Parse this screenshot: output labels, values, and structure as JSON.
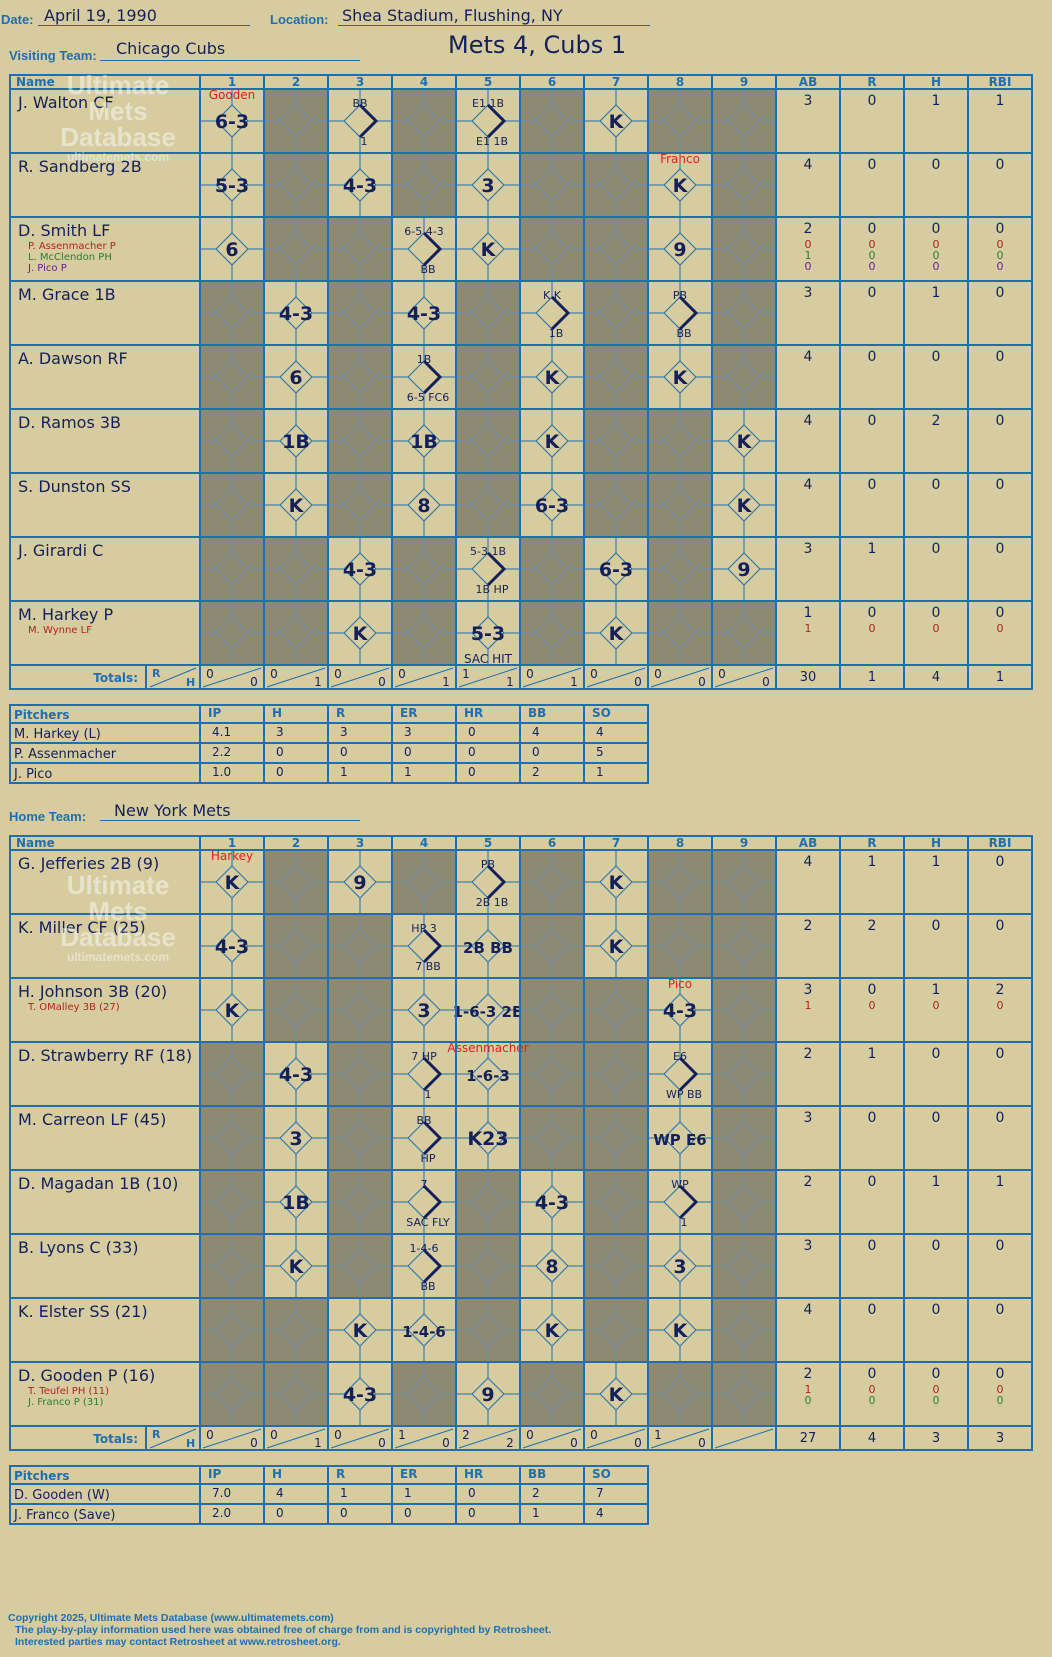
{
  "header": {
    "date_label": "Date:",
    "date": "April 19, 1990",
    "location_label": "Location:",
    "location": "Shea Stadium, Flushing, NY",
    "visiting_label": "Visiting Team:",
    "visiting_team": "Chicago Cubs",
    "home_label": "Home Team:",
    "home_team": "New York Mets",
    "result": "Mets 4, Cubs 1"
  },
  "watermark": {
    "line1": "Ultimate",
    "line2": "Mets",
    "line3": "Database",
    "url": "ultimatemets.com"
  },
  "grid_headers": {
    "name": "Name",
    "innings": [
      "1",
      "2",
      "3",
      "4",
      "5",
      "6",
      "7",
      "8",
      "9"
    ],
    "stats": [
      "AB",
      "R",
      "H",
      "RBI"
    ],
    "totals": "Totals:",
    "r": "R",
    "h": "H"
  },
  "pitching_headers": {
    "name": "Pitchers",
    "cols": [
      "IP",
      "H",
      "R",
      "ER",
      "HR",
      "BB",
      "SO"
    ]
  },
  "visitors": {
    "batters": [
      {
        "name": "J. Walton CF",
        "subs": [],
        "stats": [
          [
            "3",
            "0",
            "1",
            "1"
          ]
        ]
      },
      {
        "name": "R. Sandberg 2B",
        "subs": [],
        "stats": [
          [
            "4",
            "0",
            "0",
            "0"
          ]
        ]
      },
      {
        "name": "D. Smith LF",
        "subs": [
          {
            "name": "P. Assenmacher P",
            "color": "#b22222"
          },
          {
            "name": "L. McClendon PH",
            "color": "#2e7d32"
          },
          {
            "name": "J. Pico P",
            "color": "#6a1b9a"
          }
        ],
        "stats": [
          [
            "2",
            "0",
            "0",
            "0"
          ],
          [
            "0",
            "0",
            "0",
            "0"
          ],
          [
            "1",
            "0",
            "0",
            "0"
          ],
          [
            "0",
            "0",
            "0",
            "0"
          ]
        ]
      },
      {
        "name": "M. Grace 1B",
        "subs": [],
        "stats": [
          [
            "3",
            "0",
            "1",
            "0"
          ]
        ]
      },
      {
        "name": "A. Dawson RF",
        "subs": [],
        "stats": [
          [
            "4",
            "0",
            "0",
            "0"
          ]
        ]
      },
      {
        "name": "D. Ramos 3B",
        "subs": [],
        "stats": [
          [
            "4",
            "0",
            "2",
            "0"
          ]
        ]
      },
      {
        "name": "S. Dunston SS",
        "subs": [],
        "stats": [
          [
            "4",
            "0",
            "0",
            "0"
          ]
        ]
      },
      {
        "name": "J. Girardi C",
        "subs": [],
        "stats": [
          [
            "3",
            "1",
            "0",
            "0"
          ]
        ]
      },
      {
        "name": "M. Harkey P",
        "subs": [
          {
            "name": "M. Wynne LF",
            "color": "#b22222"
          }
        ],
        "stats": [
          [
            "1",
            "0",
            "0",
            "0"
          ],
          [
            "1",
            "0",
            "0",
            "0"
          ]
        ]
      }
    ],
    "plays": [
      [
        "6-3",
        "",
        "BB|1",
        "",
        "E1 1B|E1 1B",
        "",
        "K",
        "",
        ""
      ],
      [
        "5-3",
        "",
        "4-3",
        "",
        "3",
        "",
        "",
        "K",
        ""
      ],
      [
        "6",
        "",
        "",
        "6-5 4-3|BB",
        "K",
        "",
        "",
        "9",
        ""
      ],
      [
        "",
        "4-3",
        "",
        "4-3",
        "",
        "K K|1B",
        "",
        "PB|BB",
        ""
      ],
      [
        "",
        "6",
        "",
        "1B|6-5 FC6",
        "",
        "K",
        "",
        "K",
        ""
      ],
      [
        "",
        "1B",
        "",
        "1B",
        "",
        "K",
        "",
        "",
        "K"
      ],
      [
        "",
        "K",
        "",
        "8",
        "",
        "6-3",
        "",
        "",
        "K"
      ],
      [
        "",
        "",
        "4-3",
        "",
        "5-3 1B|1B HP",
        "",
        "6-3",
        "",
        "9"
      ],
      [
        "",
        "",
        "K",
        "",
        "5-3",
        "",
        "K",
        "",
        ""
      ]
    ],
    "annotations": [
      {
        "text": "Gooden",
        "color": "#e02020",
        "row": 0,
        "inning": 1
      },
      {
        "text": "Franco",
        "color": "#e02020",
        "row": 1,
        "inning": 8
      },
      {
        "text": "SAC HIT",
        "color": "#14205a",
        "row": 8,
        "inning": 5
      }
    ],
    "totals": [
      [
        "0",
        "0"
      ],
      [
        "0",
        "1"
      ],
      [
        "0",
        "0"
      ],
      [
        "0",
        "1"
      ],
      [
        "1",
        "1"
      ],
      [
        "0",
        "1"
      ],
      [
        "0",
        "0"
      ],
      [
        "0",
        "0"
      ],
      [
        "0",
        "0"
      ]
    ],
    "totals_stats": [
      "30",
      "1",
      "4",
      "1"
    ],
    "pitchers": [
      {
        "name": "M. Harkey (L)",
        "stats": [
          "4.1",
          "3",
          "3",
          "3",
          "0",
          "4",
          "4"
        ]
      },
      {
        "name": "P. Assenmacher",
        "stats": [
          "2.2",
          "0",
          "0",
          "0",
          "0",
          "0",
          "5"
        ]
      },
      {
        "name": "J. Pico",
        "stats": [
          "1.0",
          "0",
          "1",
          "1",
          "0",
          "2",
          "1"
        ]
      }
    ]
  },
  "home": {
    "batters": [
      {
        "name": "G. Jefferies 2B (9)",
        "subs": [],
        "stats": [
          [
            "4",
            "1",
            "1",
            "0"
          ]
        ]
      },
      {
        "name": "K. Miller CF (25)",
        "subs": [],
        "stats": [
          [
            "2",
            "2",
            "0",
            "0"
          ]
        ]
      },
      {
        "name": "H. Johnson 3B (20)",
        "subs": [
          {
            "name": "T. OMalley 3B (27)",
            "color": "#b22222"
          }
        ],
        "stats": [
          [
            "3",
            "0",
            "1",
            "2"
          ],
          [
            "1",
            "0",
            "0",
            "0"
          ]
        ]
      },
      {
        "name": "D. Strawberry RF (18)",
        "subs": [],
        "stats": [
          [
            "2",
            "1",
            "0",
            "0"
          ]
        ]
      },
      {
        "name": "M. Carreon LF (45)",
        "subs": [],
        "stats": [
          [
            "3",
            "0",
            "0",
            "0"
          ]
        ]
      },
      {
        "name": "D. Magadan 1B (10)",
        "subs": [],
        "stats": [
          [
            "2",
            "0",
            "1",
            "1"
          ]
        ]
      },
      {
        "name": "B. Lyons C (33)",
        "subs": [],
        "stats": [
          [
            "3",
            "0",
            "0",
            "0"
          ]
        ]
      },
      {
        "name": "K. Elster SS (21)",
        "subs": [],
        "stats": [
          [
            "4",
            "0",
            "0",
            "0"
          ]
        ]
      },
      {
        "name": "D. Gooden P (16)",
        "subs": [
          {
            "name": "T. Teufel PH (11)",
            "color": "#b22222"
          },
          {
            "name": "J. Franco P (31)",
            "color": "#2e7d32"
          }
        ],
        "stats": [
          [
            "2",
            "0",
            "0",
            "0"
          ],
          [
            "1",
            "0",
            "0",
            "0"
          ],
          [
            "0",
            "0",
            "0",
            "0"
          ]
        ]
      }
    ],
    "plays": [
      [
        "K",
        "",
        "9",
        "",
        "PB|2B 1B",
        "",
        "K",
        "",
        ""
      ],
      [
        "4-3",
        "",
        "",
        "HP 3|7 BB",
        "2B BB",
        "",
        "K",
        "",
        ""
      ],
      [
        "K",
        "",
        "",
        "3",
        "1-6-3 2B",
        "",
        "",
        "4-3",
        ""
      ],
      [
        "",
        "4-3",
        "",
        "7 HP|1",
        "1-6-3",
        "",
        "",
        "E6|WP BB",
        ""
      ],
      [
        "",
        "3",
        "",
        "BB|HP",
        "K23",
        "",
        "",
        "WP E6",
        ""
      ],
      [
        "",
        "1B",
        "",
        "7|SAC FLY",
        "",
        "4-3",
        "",
        "WP|1",
        ""
      ],
      [
        "",
        "K",
        "",
        "1-4-6|BB",
        "",
        "8",
        "",
        "3",
        ""
      ],
      [
        "",
        "",
        "K",
        "1-4-6",
        "",
        "K",
        "",
        "K",
        ""
      ],
      [
        "",
        "",
        "4-3",
        "",
        "9",
        "",
        "K",
        "",
        ""
      ]
    ],
    "annotations": [
      {
        "text": "Harkey",
        "color": "#e02020",
        "row": 0,
        "inning": 1
      },
      {
        "text": "Pico",
        "color": "#e02020",
        "row": 2,
        "inning": 8
      },
      {
        "text": "Assenmacher",
        "color": "#e02020",
        "row": 3,
        "inning": 5
      }
    ],
    "totals": [
      [
        "0",
        "0"
      ],
      [
        "0",
        "1"
      ],
      [
        "0",
        "0"
      ],
      [
        "1",
        "0"
      ],
      [
        "2",
        "2"
      ],
      [
        "0",
        "0"
      ],
      [
        "0",
        "0"
      ],
      [
        "1",
        "0"
      ],
      [
        "",
        ""
      ]
    ],
    "totals_stats": [
      "27",
      "4",
      "3",
      "3"
    ],
    "pitchers": [
      {
        "name": "D. Gooden (W)",
        "stats": [
          "7.0",
          "4",
          "1",
          "1",
          "0",
          "2",
          "7"
        ]
      },
      {
        "name": "J. Franco (Save)",
        "stats": [
          "2.0",
          "0",
          "0",
          "0",
          "0",
          "1",
          "4"
        ]
      }
    ]
  },
  "footer": {
    "line1": "Copyright 2025, Ultimate Mets Database (www.ultimatemets.com)",
    "line2": "The play-by-play information used here was obtained free of charge from and is copyrighted by Retrosheet.",
    "line3": "Interested parties may contact Retrosheet at www.retrosheet.org."
  },
  "colors": {
    "paper": "#d6cca0",
    "grid": "#1f6fb0",
    "shade": "#8d8a74",
    "ink": "#14205a",
    "red": "#e02020"
  }
}
